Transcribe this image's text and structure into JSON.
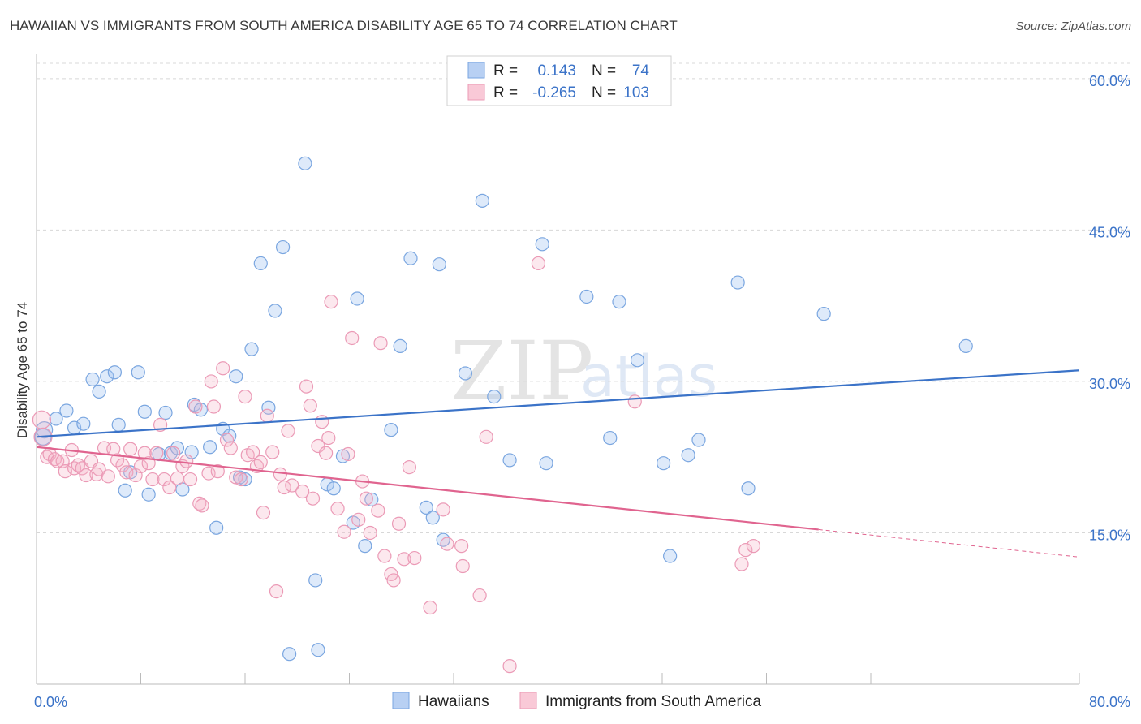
{
  "title": "HAWAIIAN VS IMMIGRANTS FROM SOUTH AMERICA DISABILITY AGE 65 TO 74 CORRELATION CHART",
  "source": "Source: ZipAtlas.com",
  "watermark": {
    "zip": "ZIP",
    "atlas": "atlas"
  },
  "colors": {
    "blue": "#3b73c8",
    "blue_fill": "rgba(160,195,240,0.35)",
    "blue_stroke": "#7aa6e0",
    "pink": "#e0648f",
    "pink_fill": "rgba(245,180,200,0.30)",
    "pink_stroke": "#eb9ab6",
    "grid": "#d8d8d8"
  },
  "legend": {
    "rows": [
      {
        "r_label": "R =",
        "r_value": "0.143",
        "n_label": "N =",
        "n_value": "74"
      },
      {
        "r_label": "R =",
        "r_value": "-0.265",
        "n_label": "N =",
        "n_value": "103"
      }
    ]
  },
  "chart_data": {
    "type": "scatter",
    "title": "HAWAIIAN VS IMMIGRANTS FROM SOUTH AMERICA DISABILITY AGE 65 TO 74 CORRELATION CHART",
    "xlabel": "",
    "ylabel": "Disability Age 65 to 74",
    "xlim": [
      0,
      80
    ],
    "ylim": [
      0,
      62
    ],
    "x_tick_labels": [
      {
        "value": 0,
        "label": "0.0%"
      },
      {
        "value": 80,
        "label": "80.0%"
      }
    ],
    "x_minor_ticks": [
      0,
      8,
      16,
      24,
      32,
      40,
      48,
      56,
      64,
      72,
      80
    ],
    "y_ticks": [
      {
        "value": 15,
        "label": "15.0%"
      },
      {
        "value": 30,
        "label": "30.0%"
      },
      {
        "value": 45,
        "label": "45.0%"
      },
      {
        "value": 60,
        "label": "60.0%"
      }
    ],
    "grid": true,
    "legend_position": "top-center",
    "series": [
      {
        "name": "Hawaiians",
        "color": "#3b73c8",
        "trend": {
          "x": [
            0,
            80
          ],
          "y": [
            24.5,
            31.1
          ],
          "dashed_from": null
        },
        "points": [
          [
            0.5,
            24.5
          ],
          [
            0.6,
            25.2
          ],
          [
            1.5,
            26.3
          ],
          [
            2.3,
            27.1
          ],
          [
            2.9,
            25.4
          ],
          [
            3.6,
            25.8
          ],
          [
            4.3,
            30.2
          ],
          [
            4.8,
            29.0
          ],
          [
            5.4,
            30.5
          ],
          [
            6.0,
            30.9
          ],
          [
            6.3,
            25.7
          ],
          [
            6.8,
            19.2
          ],
          [
            7.2,
            21.0
          ],
          [
            7.8,
            30.9
          ],
          [
            8.3,
            27.0
          ],
          [
            8.6,
            18.8
          ],
          [
            9.4,
            22.8
          ],
          [
            9.9,
            26.9
          ],
          [
            10.3,
            22.9
          ],
          [
            10.8,
            23.4
          ],
          [
            11.2,
            19.3
          ],
          [
            11.9,
            23.0
          ],
          [
            12.1,
            27.7
          ],
          [
            12.6,
            27.2
          ],
          [
            13.3,
            23.5
          ],
          [
            13.8,
            15.5
          ],
          [
            14.3,
            25.3
          ],
          [
            14.8,
            24.6
          ],
          [
            15.3,
            30.5
          ],
          [
            15.6,
            20.5
          ],
          [
            16.0,
            20.3
          ],
          [
            16.5,
            33.2
          ],
          [
            17.2,
            41.7
          ],
          [
            17.8,
            27.4
          ],
          [
            18.3,
            37.0
          ],
          [
            18.9,
            43.3
          ],
          [
            19.4,
            3.0
          ],
          [
            20.6,
            51.6
          ],
          [
            21.4,
            10.3
          ],
          [
            21.6,
            3.4
          ],
          [
            22.3,
            19.8
          ],
          [
            22.8,
            19.4
          ],
          [
            23.5,
            22.6
          ],
          [
            24.3,
            16.0
          ],
          [
            24.6,
            38.2
          ],
          [
            25.2,
            13.7
          ],
          [
            25.7,
            18.3
          ],
          [
            27.2,
            25.2
          ],
          [
            27.9,
            33.5
          ],
          [
            28.7,
            42.2
          ],
          [
            29.9,
            17.5
          ],
          [
            30.4,
            16.5
          ],
          [
            30.9,
            41.6
          ],
          [
            31.2,
            14.3
          ],
          [
            32.9,
            30.8
          ],
          [
            34.2,
            47.9
          ],
          [
            35.1,
            28.5
          ],
          [
            36.3,
            22.2
          ],
          [
            38.8,
            43.6
          ],
          [
            39.1,
            21.9
          ],
          [
            42.2,
            38.4
          ],
          [
            44.0,
            24.4
          ],
          [
            44.7,
            37.9
          ],
          [
            46.1,
            32.1
          ],
          [
            48.1,
            21.9
          ],
          [
            48.6,
            12.7
          ],
          [
            50.0,
            22.7
          ],
          [
            50.8,
            24.2
          ],
          [
            53.8,
            39.8
          ],
          [
            54.6,
            19.4
          ],
          [
            60.4,
            36.7
          ],
          [
            71.3,
            33.5
          ]
        ]
      },
      {
        "name": "Immigrants from South America",
        "color": "#e0648f",
        "trend": {
          "x": [
            0,
            80
          ],
          "y": [
            23.5,
            12.6
          ],
          "dashed_from": 60
        },
        "points": [
          [
            0.4,
            26.2
          ],
          [
            0.5,
            24.5
          ],
          [
            0.8,
            22.5
          ],
          [
            1.0,
            22.8
          ],
          [
            1.4,
            22.3
          ],
          [
            1.6,
            22.1
          ],
          [
            2.0,
            22.1
          ],
          [
            2.2,
            21.1
          ],
          [
            2.7,
            23.2
          ],
          [
            2.9,
            21.4
          ],
          [
            3.2,
            21.7
          ],
          [
            3.5,
            21.4
          ],
          [
            3.8,
            20.7
          ],
          [
            4.2,
            22.1
          ],
          [
            4.6,
            20.8
          ],
          [
            4.8,
            21.3
          ],
          [
            5.2,
            23.4
          ],
          [
            5.5,
            20.6
          ],
          [
            5.9,
            23.3
          ],
          [
            6.2,
            22.2
          ],
          [
            6.6,
            21.7
          ],
          [
            6.9,
            21.0
          ],
          [
            7.2,
            23.3
          ],
          [
            7.6,
            20.7
          ],
          [
            8.0,
            21.6
          ],
          [
            8.3,
            22.9
          ],
          [
            8.6,
            21.9
          ],
          [
            8.9,
            20.3
          ],
          [
            9.2,
            22.9
          ],
          [
            9.5,
            25.7
          ],
          [
            9.8,
            20.3
          ],
          [
            10.2,
            19.5
          ],
          [
            10.5,
            22.9
          ],
          [
            10.8,
            20.4
          ],
          [
            11.2,
            21.6
          ],
          [
            11.5,
            22.1
          ],
          [
            11.8,
            20.3
          ],
          [
            12.2,
            27.5
          ],
          [
            12.5,
            17.9
          ],
          [
            12.7,
            17.7
          ],
          [
            13.2,
            20.9
          ],
          [
            13.4,
            30.0
          ],
          [
            13.6,
            27.5
          ],
          [
            13.9,
            21.1
          ],
          [
            14.3,
            31.3
          ],
          [
            14.6,
            24.2
          ],
          [
            14.9,
            23.4
          ],
          [
            15.3,
            20.5
          ],
          [
            15.7,
            20.3
          ],
          [
            16.0,
            28.5
          ],
          [
            16.2,
            22.7
          ],
          [
            16.6,
            23.0
          ],
          [
            16.9,
            21.6
          ],
          [
            17.2,
            22.0
          ],
          [
            17.4,
            17.0
          ],
          [
            17.7,
            26.6
          ],
          [
            18.1,
            23.0
          ],
          [
            18.4,
            9.2
          ],
          [
            18.7,
            20.8
          ],
          [
            19.0,
            19.5
          ],
          [
            19.3,
            25.1
          ],
          [
            19.6,
            19.7
          ],
          [
            20.4,
            19.1
          ],
          [
            20.7,
            29.5
          ],
          [
            21.0,
            27.6
          ],
          [
            21.2,
            18.4
          ],
          [
            21.6,
            23.6
          ],
          [
            21.9,
            26.0
          ],
          [
            22.2,
            22.9
          ],
          [
            22.4,
            24.4
          ],
          [
            22.6,
            37.9
          ],
          [
            23.1,
            17.4
          ],
          [
            23.6,
            15.1
          ],
          [
            23.9,
            22.8
          ],
          [
            24.2,
            34.3
          ],
          [
            24.7,
            16.3
          ],
          [
            25.0,
            20.1
          ],
          [
            25.3,
            18.4
          ],
          [
            25.6,
            15.0
          ],
          [
            26.2,
            17.2
          ],
          [
            26.4,
            33.8
          ],
          [
            26.7,
            12.7
          ],
          [
            27.2,
            10.9
          ],
          [
            27.4,
            10.3
          ],
          [
            27.8,
            15.9
          ],
          [
            28.2,
            12.4
          ],
          [
            28.6,
            21.5
          ],
          [
            29.0,
            12.5
          ],
          [
            30.2,
            7.6
          ],
          [
            31.2,
            17.3
          ],
          [
            31.5,
            13.9
          ],
          [
            32.6,
            13.7
          ],
          [
            32.7,
            11.7
          ],
          [
            34.0,
            8.8
          ],
          [
            34.5,
            24.5
          ],
          [
            36.3,
            1.8
          ],
          [
            38.5,
            41.7
          ],
          [
            45.9,
            28.0
          ],
          [
            54.1,
            11.9
          ],
          [
            54.4,
            13.3
          ],
          [
            55.0,
            13.7
          ]
        ]
      }
    ]
  },
  "bottom_legend": {
    "items": [
      {
        "label": "Hawaiians"
      },
      {
        "label": "Immigrants from South America"
      }
    ]
  }
}
